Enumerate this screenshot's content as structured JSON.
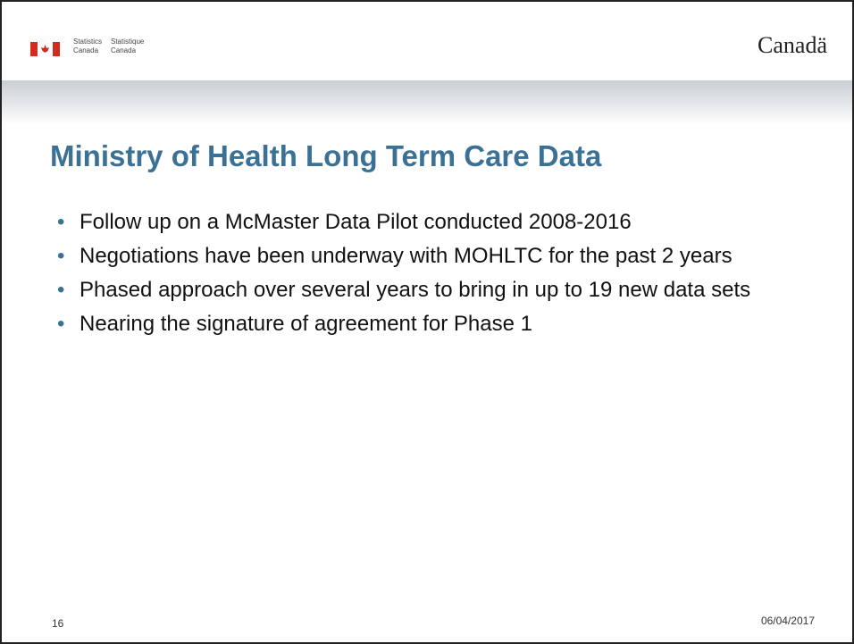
{
  "header": {
    "agency_en_1": "Statistics",
    "agency_en_2": "Canada",
    "agency_fr_1": "Statistique",
    "agency_fr_2": "Canada",
    "wordmark": "Canadä"
  },
  "slide": {
    "title": "Ministry of Health Long Term Care Data",
    "bullets": [
      "Follow up on a McMaster Data Pilot conducted 2008-2016",
      "Negotiations have been underway with MOHLTC for the past 2 years",
      "Phased approach over several years to bring in up to 19 new data sets",
      "Nearing the signature of agreement for Phase 1"
    ]
  },
  "footer": {
    "page": "16",
    "date": "06/04/2017"
  }
}
